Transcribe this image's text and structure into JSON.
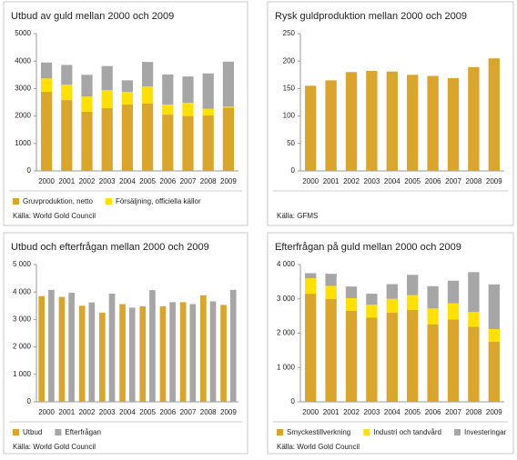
{
  "chart_data": [
    {
      "type": "stacked_bar",
      "title": "Utbud av guld mellan 2000 och 2009",
      "categories": [
        "2000",
        "2001",
        "2002",
        "2003",
        "2004",
        "2005",
        "2006",
        "2007",
        "2008",
        "2009"
      ],
      "series": [
        {
          "name": "Gruvproduktion, netto",
          "color": "#d9a52b",
          "values": [
            2880,
            2580,
            2160,
            2290,
            2420,
            2450,
            2050,
            2000,
            2020,
            2300
          ]
        },
        {
          "name": "Försäljning, officiella källor",
          "color": "#ffe000",
          "values": [
            490,
            560,
            550,
            650,
            460,
            630,
            370,
            480,
            240,
            40
          ]
        },
        {
          "color": "#a6a6a6",
          "values": [
            580,
            720,
            790,
            880,
            420,
            890,
            1090,
            960,
            1290,
            1640
          ]
        }
      ],
      "ylim": [
        0,
        5000
      ],
      "yticks": [
        0,
        1000,
        2000,
        3000,
        4000,
        5000
      ],
      "source": "Källa: World Gold Council"
    },
    {
      "type": "bar",
      "title": "Rysk guldproduktion mellan 2000 och 2009",
      "categories": [
        "2000",
        "2001",
        "2002",
        "2003",
        "2004",
        "2005",
        "2006",
        "2007",
        "2008",
        "2009"
      ],
      "series": [
        {
          "color": "#d9a52b",
          "values": [
            155,
            165,
            180,
            182,
            181,
            175,
            173,
            169,
            189,
            205
          ]
        }
      ],
      "ylim": [
        0,
        250
      ],
      "yticks": [
        0,
        50,
        100,
        150,
        200,
        250
      ],
      "source": "Källa: GFMS"
    },
    {
      "type": "grouped_bar",
      "title": "Utbud och efterfrågan mellan 2000 och 2009",
      "categories": [
        "2000",
        "2001",
        "2002",
        "2003",
        "2004",
        "2005",
        "2006",
        "2007",
        "2008",
        "2009"
      ],
      "series": [
        {
          "name": "Utbud",
          "color": "#d9a52b",
          "values": [
            3850,
            3820,
            3500,
            3250,
            3560,
            3480,
            3480,
            3630,
            3880,
            3530
          ]
        },
        {
          "name": "Efterfrågan",
          "color": "#a6a6a6",
          "values": [
            4080,
            3970,
            3620,
            3940,
            3430,
            4070,
            3630,
            3560,
            3660,
            4080
          ]
        }
      ],
      "ylim": [
        0,
        5000
      ],
      "yticks": [
        0,
        {
          "value": 1000,
          "label": "1 000"
        },
        {
          "value": 2000,
          "label": "2 000"
        },
        {
          "value": 3000,
          "label": "3 000"
        },
        {
          "value": 4000,
          "label": "4 000"
        },
        {
          "value": 5000,
          "label": "5 000"
        }
      ],
      "source": "Källa: World Gold Council"
    },
    {
      "type": "stacked_bar",
      "title": "Efterfrågan på guld mellan 2000 och 2009",
      "categories": [
        "2000",
        "2001",
        "2002",
        "2003",
        "2004",
        "2005",
        "2006",
        "2007",
        "2008",
        "2009"
      ],
      "series": [
        {
          "name": "Smyckestillverkning",
          "color": "#d9a52b",
          "values": [
            3150,
            3000,
            2650,
            2450,
            2600,
            2680,
            2260,
            2400,
            2190,
            1750
          ]
        },
        {
          "name": "Industri och tandvård",
          "color": "#ffe000",
          "values": [
            450,
            380,
            370,
            380,
            400,
            430,
            460,
            470,
            430,
            370
          ]
        },
        {
          "name": "Investeringar",
          "color": "#a6a6a6",
          "values": [
            150,
            350,
            340,
            320,
            430,
            590,
            650,
            660,
            1160,
            1300
          ]
        }
      ],
      "ylim": [
        0,
        4000
      ],
      "yticks": [
        0,
        {
          "value": 1000,
          "label": "1 000"
        },
        {
          "value": 2000,
          "label": "2 000"
        },
        {
          "value": 3000,
          "label": "3 000"
        },
        {
          "value": 4000,
          "label": "4 000"
        }
      ],
      "source": "Källa: World Gold Council"
    }
  ]
}
